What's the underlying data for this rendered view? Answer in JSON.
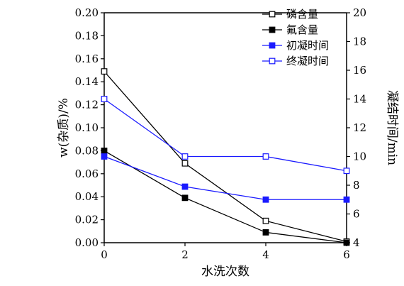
{
  "chart_data": {
    "type": "line",
    "title": "",
    "xlabel": "水洗次数",
    "ylabel_left": "w(杂质)/%",
    "ylabel_right": "凝结时间/min",
    "x": [
      0,
      2,
      4,
      6
    ],
    "xlim": [
      0,
      6
    ],
    "xticks": [
      "0",
      "2",
      "4",
      "6"
    ],
    "ylim_left": [
      0,
      0.2
    ],
    "yticks_left": [
      "0.00",
      "0.02",
      "0.04",
      "0.06",
      "0.08",
      "0.10",
      "0.12",
      "0.14",
      "0.16",
      "0.18",
      "0.20"
    ],
    "ylim_right": [
      4,
      20
    ],
    "yticks_right": [
      "4",
      "6",
      "8",
      "10",
      "12",
      "14",
      "16",
      "18",
      "20"
    ],
    "grid": false,
    "legend_position": "top-right",
    "series": [
      {
        "name": "磷含量",
        "axis": "left",
        "values": [
          0.149,
          0.069,
          0.019,
          0.001
        ],
        "color": "#000000",
        "marker": "open-square"
      },
      {
        "name": "氟含量",
        "axis": "left",
        "values": [
          0.08,
          0.039,
          0.009,
          0.0
        ],
        "color": "#000000",
        "marker": "filled-square"
      },
      {
        "name": "初凝时间",
        "axis": "right",
        "values": [
          10,
          7.9,
          7,
          7
        ],
        "color": "#1a1aff",
        "marker": "filled-square"
      },
      {
        "name": "终凝时间",
        "axis": "right",
        "values": [
          14,
          10,
          10,
          9
        ],
        "color": "#1a1aff",
        "marker": "open-square"
      }
    ]
  }
}
